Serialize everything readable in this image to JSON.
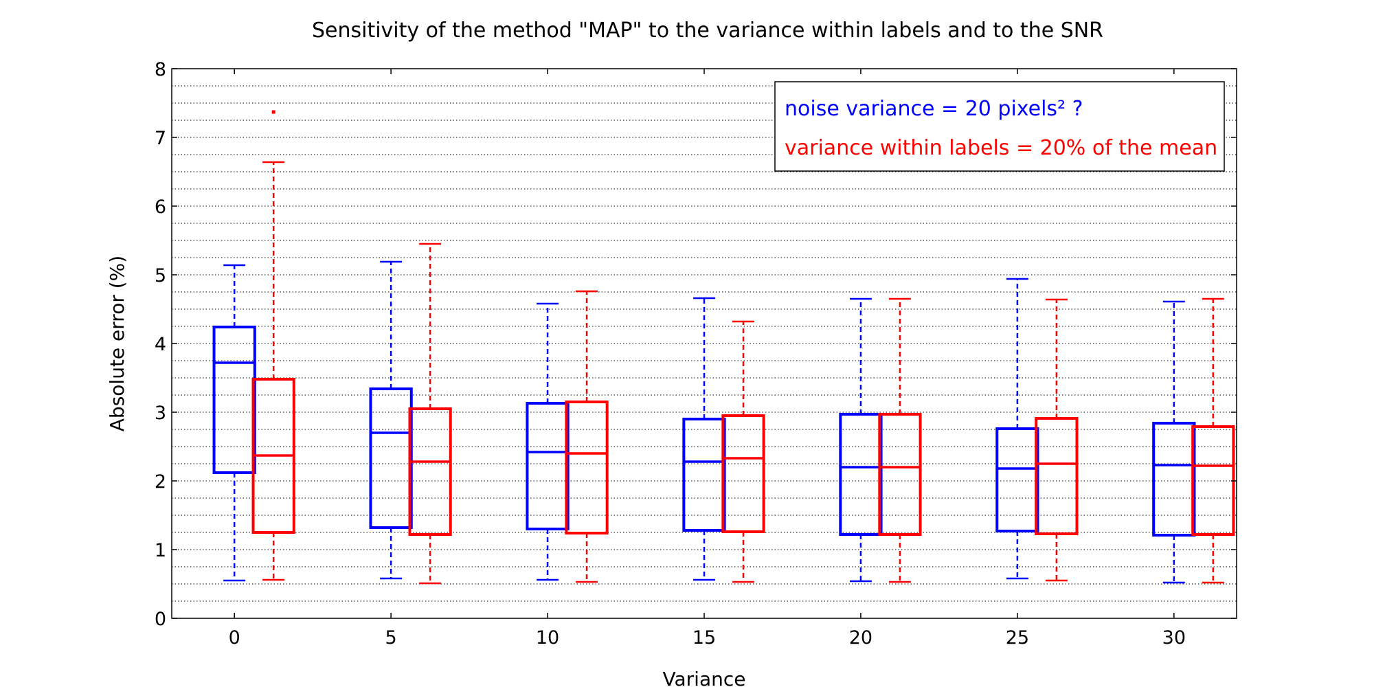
{
  "chart_data": {
    "type": "box",
    "title": "Sensitivity of the method \"MAP\" to the variance within labels and to the SNR",
    "xlabel": "Variance",
    "ylabel": "Absolute error (%)",
    "ylim": [
      0,
      8
    ],
    "xlim": [
      -2,
      32
    ],
    "yticks": [
      0,
      1,
      2,
      3,
      4,
      5,
      6,
      7,
      8
    ],
    "xticks": [
      0,
      5,
      10,
      15,
      20,
      25,
      30
    ],
    "grid": "horizontal dotted, minor step 0.25",
    "legend_position": "top-right",
    "legend": [
      {
        "text": "noise variance = 20 pixels² ?",
        "color": "#0000ff"
      },
      {
        "text": "variance within labels = 20% of the mean",
        "color": "#ff0000"
      }
    ],
    "series": [
      {
        "color": "#0000ff",
        "x": [
          0,
          5,
          10,
          15,
          20,
          25,
          30
        ],
        "boxes": [
          {
            "whislo": 0.55,
            "q1": 2.12,
            "med": 3.72,
            "q3": 4.24,
            "whishi": 5.14,
            "fliers": []
          },
          {
            "whislo": 0.58,
            "q1": 1.32,
            "med": 2.7,
            "q3": 3.34,
            "whishi": 5.19,
            "fliers": []
          },
          {
            "whislo": 0.56,
            "q1": 1.3,
            "med": 2.42,
            "q3": 3.13,
            "whishi": 4.58,
            "fliers": []
          },
          {
            "whislo": 0.56,
            "q1": 1.28,
            "med": 2.28,
            "q3": 2.9,
            "whishi": 4.66,
            "fliers": []
          },
          {
            "whislo": 0.54,
            "q1": 1.22,
            "med": 2.2,
            "q3": 2.97,
            "whishi": 4.65,
            "fliers": []
          },
          {
            "whislo": 0.58,
            "q1": 1.27,
            "med": 2.18,
            "q3": 2.76,
            "whishi": 4.94,
            "fliers": []
          },
          {
            "whislo": 0.52,
            "q1": 1.21,
            "med": 2.23,
            "q3": 2.84,
            "whishi": 4.61,
            "fliers": []
          }
        ]
      },
      {
        "color": "#ff0000",
        "x": [
          1.25,
          6.25,
          11.25,
          16.25,
          21.25,
          26.25,
          31.25
        ],
        "boxes": [
          {
            "whislo": 0.56,
            "q1": 1.25,
            "med": 2.37,
            "q3": 3.48,
            "whishi": 6.64,
            "fliers": [
              7.37
            ]
          },
          {
            "whislo": 0.51,
            "q1": 1.22,
            "med": 2.28,
            "q3": 3.05,
            "whishi": 5.45,
            "fliers": []
          },
          {
            "whislo": 0.53,
            "q1": 1.24,
            "med": 2.4,
            "q3": 3.15,
            "whishi": 4.76,
            "fliers": []
          },
          {
            "whislo": 0.53,
            "q1": 1.26,
            "med": 2.33,
            "q3": 2.95,
            "whishi": 4.32,
            "fliers": []
          },
          {
            "whislo": 0.53,
            "q1": 1.22,
            "med": 2.2,
            "q3": 2.97,
            "whishi": 4.65,
            "fliers": []
          },
          {
            "whislo": 0.55,
            "q1": 1.23,
            "med": 2.25,
            "q3": 2.91,
            "whishi": 4.64,
            "fliers": []
          },
          {
            "whislo": 0.52,
            "q1": 1.22,
            "med": 2.22,
            "q3": 2.79,
            "whishi": 4.65,
            "fliers": []
          }
        ]
      }
    ]
  }
}
